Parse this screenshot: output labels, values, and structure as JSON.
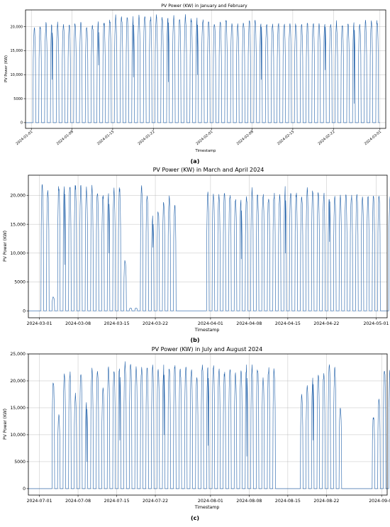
{
  "chart_data": [
    {
      "id": "a",
      "type": "line",
      "title": "PV Power (KW) in January and February",
      "xlabel": "Timestamp",
      "ylabel": "PV Power (KW)",
      "caption": "(a)",
      "grid": true,
      "x_range": [
        "2023-12-31",
        "2024-03-02"
      ],
      "ylim": [
        -1200,
        23500
      ],
      "yticks": [
        0,
        5000,
        10000,
        15000,
        20000
      ],
      "ytick_labels": [
        "0",
        "5000",
        "10,000",
        "15,000",
        "20,000"
      ],
      "xtick_labels": [
        "2024-01-01",
        "2024-01-08",
        "2024-01-15",
        "2024-01-22",
        "2024-02-01",
        "2024-02-08",
        "2024-02-15",
        "2024-02-22",
        "2024-03-01"
      ],
      "series": [
        {
          "start": "2024-01-01",
          "daily_peak_kw": [
            20500,
            20800,
            21000,
            21200,
            21300,
            21000,
            21100,
            21200,
            21000,
            20800,
            21000,
            21200,
            21300,
            22000,
            22800,
            22900,
            22800,
            22700,
            22600,
            22800,
            22500,
            22700,
            22800,
            22900,
            22600,
            22500,
            22700,
            22300,
            22000,
            22200,
            21500,
            21300,
            21600,
            21800,
            21500,
            21300,
            21800,
            22000,
            21700,
            21500,
            21600,
            21400,
            21300,
            21200,
            21400,
            21300,
            21200,
            21000,
            21300,
            21400,
            21500,
            21600,
            21300,
            21200,
            21000,
            20900,
            21300,
            21400,
            21500,
            21700
          ],
          "low_dips_kw": {
            "3": 9000,
            "11": 12000,
            "17": 9500,
            "23": 8500,
            "28": 10000,
            "39": 9000,
            "50": 11000,
            "55": 4000
          }
        }
      ]
    },
    {
      "id": "b",
      "type": "line",
      "title": "PV Power (KW) in March and April 2024",
      "xlabel": "Timestamp",
      "ylabel": "PV Power (KW)",
      "caption": "(b)",
      "grid": true,
      "x_range": [
        "2024-02-28",
        "2024-05-03"
      ],
      "ylim": [
        -1200,
        23500
      ],
      "yticks": [
        0,
        5000,
        10000,
        15000,
        20000
      ],
      "ytick_labels": [
        "0",
        "5000",
        "10,000",
        "15,000",
        "20,000"
      ],
      "xtick_labels": [
        "2024-03-01",
        "2024-03-08",
        "2024-03-15",
        "2024-03-22",
        "2024-04-01",
        "2024-04-08",
        "2024-04-15",
        "2024-04-22",
        "2024-05-01"
      ],
      "series": [
        {
          "start": "2024-03-01",
          "daily_peak_kw": [
            22200,
            21500,
            2500,
            22000,
            22100,
            22200,
            22300,
            22100,
            22000,
            21800,
            21500,
            20500,
            21000,
            21400,
            21800,
            9000,
            500,
            500,
            22000,
            21000,
            17000,
            18000,
            19500,
            20000,
            19000,
            0,
            0,
            0,
            0,
            0,
            20900,
            21000,
            20800,
            21200,
            20600,
            20000,
            19500,
            20500,
            21500,
            20800,
            21000,
            20400,
            20800,
            20300,
            21600,
            21200,
            21000,
            20500,
            21700,
            21300,
            21100,
            20800,
            20500,
            20600,
            20400,
            20700,
            20500,
            20700,
            20600,
            20300,
            20500,
            20600,
            0,
            20300,
            20900
          ],
          "low_dips_kw": {
            "4": 8000,
            "12": 10000,
            "20": 11000,
            "36": 9000,
            "44": 10000,
            "52": 12000
          }
        }
      ]
    },
    {
      "id": "c",
      "type": "line",
      "title": "PV Power (KW) in July and August 2024",
      "xlabel": "Timestamp",
      "ylabel": "PV Power (KW)",
      "caption": "(c)",
      "grid": true,
      "x_range": [
        "2024-06-29",
        "2024-09-02"
      ],
      "ylim": [
        -1200,
        25000
      ],
      "yticks": [
        0,
        5000,
        10000,
        15000,
        20000,
        25000
      ],
      "ytick_labels": [
        "0",
        "5000",
        "10,000",
        "15,000",
        "20,000",
        "25,000"
      ],
      "xtick_labels": [
        "2024-07-01",
        "2024-07-08",
        "2024-07-15",
        "2024-07-22",
        "2024-08-01",
        "2024-08-08",
        "2024-08-15",
        "2024-08-22",
        "2024-09-01"
      ],
      "series": [
        {
          "start": "2024-07-01",
          "daily_peak_kw": [
            0,
            0,
            20500,
            13800,
            22000,
            22100,
            18000,
            22500,
            16000,
            22400,
            22800,
            19000,
            23000,
            22500,
            23500,
            24000,
            23800,
            23000,
            22900,
            22800,
            23100,
            22700,
            23000,
            23200,
            23300,
            22600,
            23100,
            22900,
            21000,
            23700,
            22800,
            23600,
            23000,
            22100,
            23000,
            21600,
            22800,
            23400,
            23100,
            23000,
            21000,
            22900,
            22700,
            0,
            0,
            0,
            0,
            17600,
            19200,
            20900,
            21900,
            22000,
            23100,
            22800,
            15500,
            0,
            0,
            0,
            0,
            0,
            13700,
            16800,
            23000,
            23200,
            23200,
            0,
            0
          ],
          "low_dips_kw": {
            "8": 5000,
            "14": 9000,
            "22": 10000,
            "30": 8000,
            "37": 6000,
            "49": 9000,
            "63": 10000
          }
        }
      ]
    }
  ]
}
